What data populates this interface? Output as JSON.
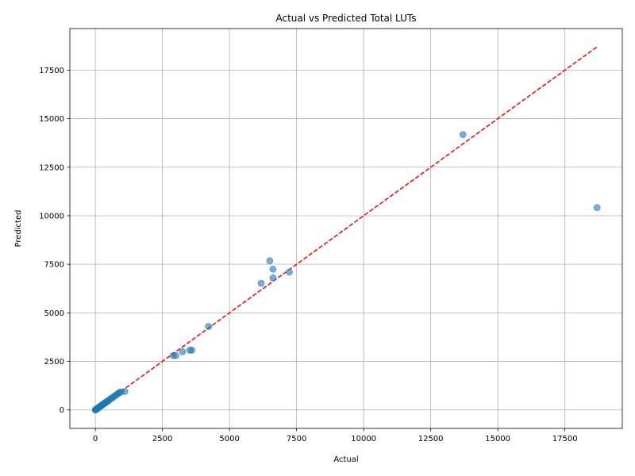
{
  "chart_data": {
    "type": "scatter",
    "title": "Actual vs Predicted Total LUTs",
    "xlabel": "Actual",
    "ylabel": "Predicted",
    "xlim": [
      -950,
      19640
    ],
    "ylim": [
      -950,
      19640
    ],
    "xticks": [
      0,
      2500,
      5000,
      7500,
      10000,
      12500,
      15000,
      17500
    ],
    "yticks": [
      0,
      2500,
      5000,
      7500,
      10000,
      12500,
      15000,
      17500
    ],
    "xtick_labels": [
      "0",
      "2500",
      "5000",
      "7500",
      "10000",
      "12500",
      "15000",
      "17500"
    ],
    "ytick_labels": [
      "0",
      "2500",
      "5000",
      "7500",
      "10000",
      "12500",
      "15000",
      "17500"
    ],
    "grid": true,
    "point_color": "#1f77b4",
    "point_alpha": 0.6,
    "reference_line": {
      "from": [
        0,
        0
      ],
      "to": [
        18700,
        18700
      ],
      "color": "#ff0000",
      "style": "dashed"
    },
    "points": [
      {
        "x": 0,
        "y": 0
      },
      {
        "x": 10,
        "y": 10
      },
      {
        "x": 20,
        "y": 15
      },
      {
        "x": 30,
        "y": 30
      },
      {
        "x": 40,
        "y": 45
      },
      {
        "x": 60,
        "y": 55
      },
      {
        "x": 80,
        "y": 85
      },
      {
        "x": 100,
        "y": 90
      },
      {
        "x": 120,
        "y": 130
      },
      {
        "x": 150,
        "y": 140
      },
      {
        "x": 180,
        "y": 190
      },
      {
        "x": 200,
        "y": 210
      },
      {
        "x": 230,
        "y": 220
      },
      {
        "x": 260,
        "y": 270
      },
      {
        "x": 290,
        "y": 280
      },
      {
        "x": 320,
        "y": 330
      },
      {
        "x": 350,
        "y": 340
      },
      {
        "x": 380,
        "y": 390
      },
      {
        "x": 420,
        "y": 410
      },
      {
        "x": 450,
        "y": 460
      },
      {
        "x": 500,
        "y": 480
      },
      {
        "x": 550,
        "y": 560
      },
      {
        "x": 600,
        "y": 600
      },
      {
        "x": 650,
        "y": 640
      },
      {
        "x": 700,
        "y": 700
      },
      {
        "x": 750,
        "y": 740
      },
      {
        "x": 800,
        "y": 800
      },
      {
        "x": 850,
        "y": 840
      },
      {
        "x": 900,
        "y": 900
      },
      {
        "x": 950,
        "y": 930
      },
      {
        "x": 1100,
        "y": 950
      },
      {
        "x": 2900,
        "y": 2800
      },
      {
        "x": 3000,
        "y": 2800
      },
      {
        "x": 3250,
        "y": 3000
      },
      {
        "x": 3520,
        "y": 3080
      },
      {
        "x": 3600,
        "y": 3080
      },
      {
        "x": 4220,
        "y": 4300
      },
      {
        "x": 6180,
        "y": 6520
      },
      {
        "x": 6500,
        "y": 7680
      },
      {
        "x": 6620,
        "y": 7250
      },
      {
        "x": 6620,
        "y": 6800
      },
      {
        "x": 7230,
        "y": 7100
      },
      {
        "x": 13700,
        "y": 14180
      },
      {
        "x": 18700,
        "y": 10420
      }
    ]
  }
}
